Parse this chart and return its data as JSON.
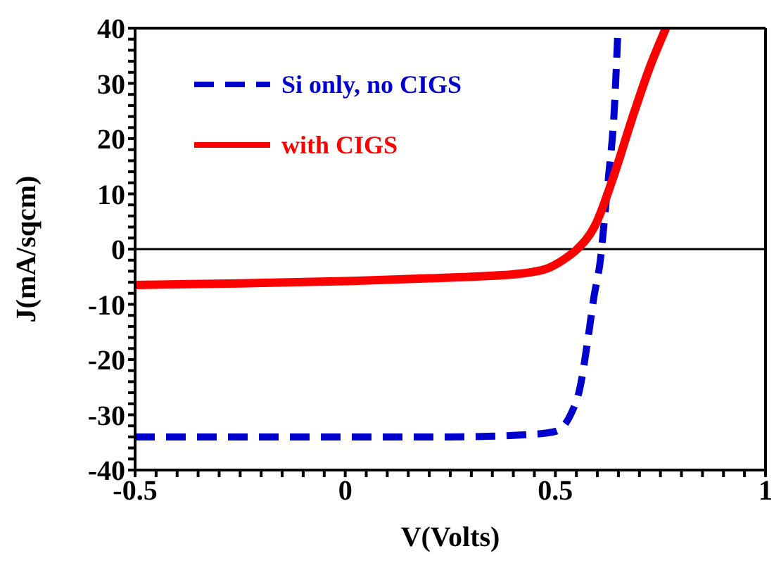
{
  "chart_data": {
    "type": "line",
    "xlabel": "V(Volts)",
    "ylabel": "J(mA/sqcm)",
    "xlim": [
      -0.5,
      1
    ],
    "ylim": [
      -40,
      40
    ],
    "xticks": [
      -0.5,
      {
        "value": -0.45,
        "label": null
      },
      {
        "value": -0.4,
        "label": null
      },
      {
        "value": -0.35,
        "label": null
      },
      {
        "value": -0.3,
        "label": null
      },
      {
        "value": -0.25,
        "label": null
      },
      {
        "value": -0.2,
        "label": null
      },
      {
        "value": -0.15,
        "label": null
      },
      {
        "value": -0.1,
        "label": null
      },
      {
        "value": -0.05,
        "label": null
      },
      0,
      {
        "value": 0.05,
        "label": null
      },
      {
        "value": 0.1,
        "label": null
      },
      {
        "value": 0.15,
        "label": null
      },
      {
        "value": 0.2,
        "label": null
      },
      {
        "value": 0.25,
        "label": null
      },
      {
        "value": 0.3,
        "label": null
      },
      {
        "value": 0.35,
        "label": null
      },
      {
        "value": 0.4,
        "label": null
      },
      {
        "value": 0.45,
        "label": null
      },
      0.5,
      {
        "value": 0.55,
        "label": null
      },
      {
        "value": 0.6,
        "label": null
      },
      {
        "value": 0.65,
        "label": null
      },
      {
        "value": 0.7,
        "label": null
      },
      {
        "value": 0.75,
        "label": null
      },
      {
        "value": 0.8,
        "label": null
      },
      {
        "value": 0.85,
        "label": null
      },
      {
        "value": 0.9,
        "label": null
      },
      {
        "value": 0.95,
        "label": null
      },
      1
    ],
    "yticks": [
      -40,
      {
        "value": -38,
        "label": null
      },
      {
        "value": -36,
        "label": null
      },
      {
        "value": -34,
        "label": null
      },
      {
        "value": -32,
        "label": null
      },
      -30,
      {
        "value": -28,
        "label": null
      },
      {
        "value": -26,
        "label": null
      },
      {
        "value": -24,
        "label": null
      },
      {
        "value": -22,
        "label": null
      },
      -20,
      {
        "value": -18,
        "label": null
      },
      {
        "value": -16,
        "label": null
      },
      {
        "value": -14,
        "label": null
      },
      {
        "value": -12,
        "label": null
      },
      -10,
      {
        "value": -8,
        "label": null
      },
      {
        "value": -6,
        "label": null
      },
      {
        "value": -4,
        "label": null
      },
      {
        "value": -2,
        "label": null
      },
      0,
      {
        "value": 2,
        "label": null
      },
      {
        "value": 4,
        "label": null
      },
      {
        "value": 6,
        "label": null
      },
      {
        "value": 8,
        "label": null
      },
      10,
      {
        "value": 12,
        "label": null
      },
      {
        "value": 14,
        "label": null
      },
      {
        "value": 16,
        "label": null
      },
      {
        "value": 18,
        "label": null
      },
      20,
      {
        "value": 22,
        "label": null
      },
      {
        "value": 24,
        "label": null
      },
      {
        "value": 26,
        "label": null
      },
      {
        "value": 28,
        "label": null
      },
      30,
      {
        "value": 32,
        "label": null
      },
      {
        "value": 34,
        "label": null
      },
      {
        "value": 36,
        "label": null
      },
      {
        "value": 38,
        "label": null
      },
      40
    ],
    "legend": "top left",
    "marker": "none",
    "ref_lines": [
      {
        "axis": "y",
        "value": 0,
        "color": "#000000",
        "line_style": "solid"
      }
    ],
    "series": [
      {
        "name": "Si only, no CIGS",
        "color": "#0000cc",
        "line_style": "dashed",
        "x": [
          -0.5,
          -0.25,
          0,
          0.25,
          0.45,
          0.5,
          0.536,
          0.558,
          0.578,
          0.591,
          0.607,
          0.617,
          0.627,
          0.64,
          0.649
        ],
        "values": [
          -34,
          -34,
          -34,
          -34,
          -33.5,
          -33,
          -30,
          -25.3,
          -16,
          -9,
          -2,
          5.6,
          13.5,
          25,
          40
        ]
      },
      {
        "name": "with CIGS",
        "color": "#ff0000",
        "line_style": "solid",
        "x": [
          -0.5,
          -0.25,
          0,
          0.2,
          0.3,
          0.422,
          0.487,
          0.529,
          0.552,
          0.594,
          0.64,
          0.682,
          0.724,
          0.763
        ],
        "values": [
          -6.5,
          -6.2,
          -5.8,
          -5.3,
          -5,
          -4.4,
          -3.3,
          -1.4,
          0,
          4.2,
          13.5,
          23.5,
          32.8,
          40
        ]
      }
    ]
  }
}
